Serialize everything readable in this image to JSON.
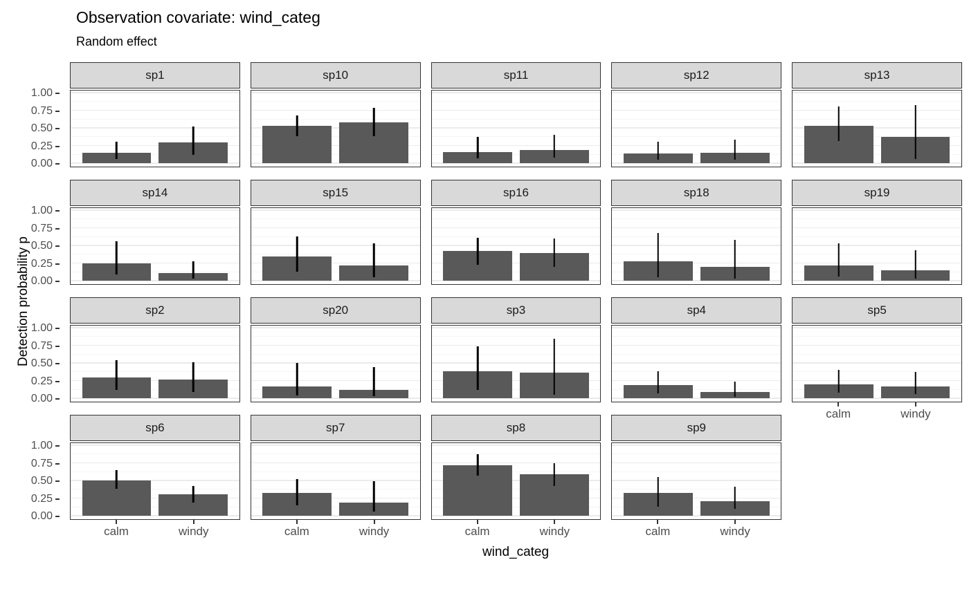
{
  "title": "Observation covariate: wind_categ",
  "subtitle": "Random effect",
  "layout": {
    "columns": 5
  },
  "chart_data": {
    "type": "bar",
    "title": "Observation covariate: wind_categ",
    "subtitle": "Random effect",
    "xlabel": "wind_categ",
    "ylabel": "Detection probability p",
    "categories": [
      "calm",
      "windy"
    ],
    "ylim": [
      0,
      1
    ],
    "grid": true,
    "legend": "none",
    "y_ticks": [
      {
        "value": 0.0,
        "label": "0.00"
      },
      {
        "value": 0.25,
        "label": "0.25"
      },
      {
        "value": 0.5,
        "label": "0.50"
      },
      {
        "value": 0.75,
        "label": "0.75"
      },
      {
        "value": 1.0,
        "label": "1.00"
      }
    ],
    "facets": [
      {
        "name": "sp1",
        "values": [
          0.15,
          0.29
        ],
        "err_low": [
          0.06,
          0.12
        ],
        "err_high": [
          0.3,
          0.52
        ]
      },
      {
        "name": "sp10",
        "values": [
          0.53,
          0.58
        ],
        "err_low": [
          0.38,
          0.38
        ],
        "err_high": [
          0.68,
          0.78
        ]
      },
      {
        "name": "sp11",
        "values": [
          0.16,
          0.19
        ],
        "err_low": [
          0.07,
          0.08
        ],
        "err_high": [
          0.37,
          0.4
        ]
      },
      {
        "name": "sp12",
        "values": [
          0.14,
          0.15
        ],
        "err_low": [
          0.05,
          0.05
        ],
        "err_high": [
          0.3,
          0.33
        ]
      },
      {
        "name": "sp13",
        "values": [
          0.53,
          0.37
        ],
        "err_low": [
          0.31,
          0.06
        ],
        "err_high": [
          0.8,
          0.82
        ]
      },
      {
        "name": "sp14",
        "values": [
          0.25,
          0.11
        ],
        "err_low": [
          0.09,
          0.03
        ],
        "err_high": [
          0.56,
          0.27
        ]
      },
      {
        "name": "sp15",
        "values": [
          0.34,
          0.22
        ],
        "err_low": [
          0.13,
          0.05
        ],
        "err_high": [
          0.63,
          0.53
        ]
      },
      {
        "name": "sp16",
        "values": [
          0.42,
          0.39
        ],
        "err_low": [
          0.23,
          0.2
        ],
        "err_high": [
          0.61,
          0.6
        ]
      },
      {
        "name": "sp18",
        "values": [
          0.27,
          0.2
        ],
        "err_low": [
          0.05,
          0.03
        ],
        "err_high": [
          0.68,
          0.58
        ]
      },
      {
        "name": "sp19",
        "values": [
          0.22,
          0.15
        ],
        "err_low": [
          0.06,
          0.03
        ],
        "err_high": [
          0.53,
          0.43
        ]
      },
      {
        "name": "sp2",
        "values": [
          0.29,
          0.26
        ],
        "err_low": [
          0.12,
          0.09
        ],
        "err_high": [
          0.54,
          0.51
        ]
      },
      {
        "name": "sp20",
        "values": [
          0.17,
          0.12
        ],
        "err_low": [
          0.04,
          0.03
        ],
        "err_high": [
          0.5,
          0.44
        ]
      },
      {
        "name": "sp3",
        "values": [
          0.38,
          0.36
        ],
        "err_low": [
          0.12,
          0.05
        ],
        "err_high": [
          0.74,
          0.84
        ]
      },
      {
        "name": "sp4",
        "values": [
          0.19,
          0.09
        ],
        "err_low": [
          0.07,
          0.02
        ],
        "err_high": [
          0.38,
          0.24
        ]
      },
      {
        "name": "sp5",
        "values": [
          0.2,
          0.17
        ],
        "err_low": [
          0.08,
          0.06
        ],
        "err_high": [
          0.4,
          0.37
        ]
      },
      {
        "name": "sp6",
        "values": [
          0.5,
          0.3
        ],
        "err_low": [
          0.38,
          0.19
        ],
        "err_high": [
          0.65,
          0.42
        ]
      },
      {
        "name": "sp7",
        "values": [
          0.32,
          0.19
        ],
        "err_low": [
          0.15,
          0.06
        ],
        "err_high": [
          0.52,
          0.49
        ]
      },
      {
        "name": "sp8",
        "values": [
          0.72,
          0.59
        ],
        "err_low": [
          0.57,
          0.42
        ],
        "err_high": [
          0.87,
          0.75
        ]
      },
      {
        "name": "sp9",
        "values": [
          0.32,
          0.21
        ],
        "err_low": [
          0.13,
          0.1
        ],
        "err_high": [
          0.55,
          0.41
        ]
      }
    ],
    "colors": {
      "bar": "#595959",
      "error_bar": "#000000",
      "strip_bg": "#d9d9d9",
      "border": "#333333",
      "grid_major": "#ebebeb",
      "grid_minor": "#f5f5f5",
      "tick_label": "#4d4d4d"
    }
  }
}
